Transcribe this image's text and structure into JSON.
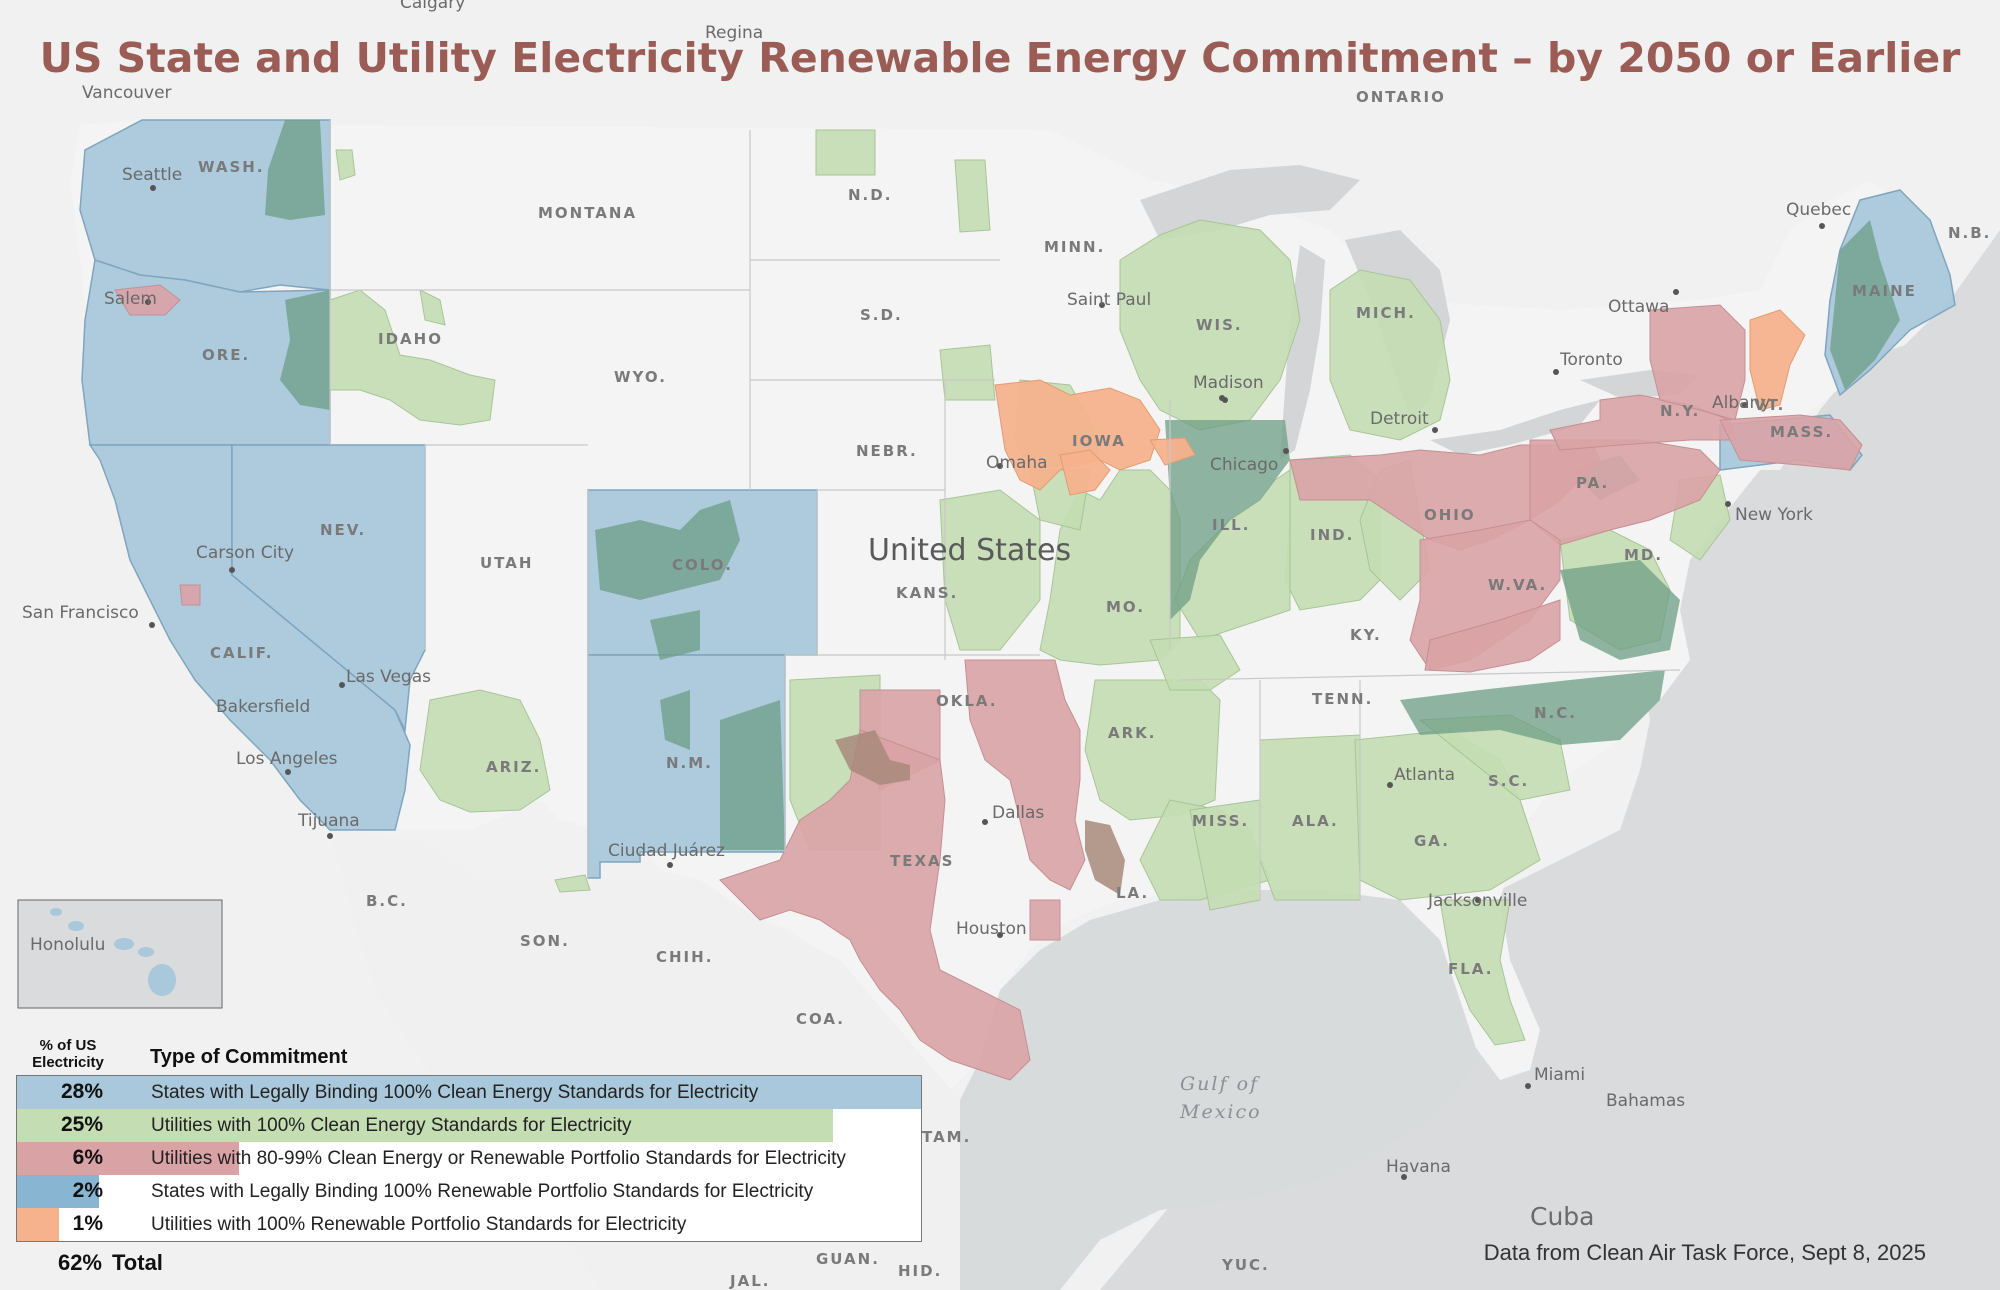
{
  "title": "US State and Utility Electricity Renewable Energy Commitment – by 2050 or Earlier",
  "source": "Data from Clean Air Task Force, Sept 8, 2025",
  "colors": {
    "state_clean": "#a9c8db",
    "utility_clean": "#c4ddb2",
    "utility_80_99": "#d9a3a6",
    "state_rps": "#88b5d2",
    "utility_rps": "#f5b28d",
    "overlap_dark": "#6d9e86",
    "water": "#d8dbdc",
    "land": "#f2f2f2",
    "title": "#9a5c55"
  },
  "legend": {
    "pct_header": "% of US Electricity",
    "type_header": "Type of Commitment",
    "rows": [
      {
        "pct": "28%",
        "label": "States with Legally Binding 100% Clean Energy Standards for Electricity",
        "value": 28,
        "color": "#a9c8db"
      },
      {
        "pct": "25%",
        "label": "Utilities with 100% Clean Energy Standards for Electricity",
        "value": 25,
        "color": "#c4ddb2"
      },
      {
        "pct": "6%",
        "label": "Utilities with 80-99% Clean Energy or Renewable Portfolio Standards for Electricity",
        "value": 6,
        "color": "#d9a3a6"
      },
      {
        "pct": "2%",
        "label": "States with Legally Binding 100% Renewable Portfolio Standards for Electricity",
        "value": 2,
        "color": "#88b5d2"
      },
      {
        "pct": "1%",
        "label": "Utilities with 100% Renewable Portfolio Standards for Electricity",
        "value": 1,
        "color": "#f5b28d"
      }
    ],
    "total_pct": "62%",
    "total_label": "Total"
  },
  "map_labels": {
    "country": "United States",
    "cities": {
      "calgary": "Calgary",
      "regina": "Regina",
      "vancouver": "Vancouver",
      "seattle": "Seattle",
      "salem": "Salem",
      "quebec": "Quebec",
      "ottawa": "Ottawa",
      "toronto": "Toronto",
      "albany": "Albany",
      "saint_paul": "Saint Paul",
      "madison": "Madison",
      "detroit": "Detroit",
      "chicago": "Chicago",
      "omaha": "Omaha",
      "new_york": "New York",
      "carson_city": "Carson City",
      "san_francisco": "San Francisco",
      "las_vegas": "Las Vegas",
      "bakersfield": "Bakersfield",
      "los_angeles": "Los Angeles",
      "tijuana": "Tijuana",
      "ciudad_juarez": "Ciudad Juárez",
      "dallas": "Dallas",
      "houston": "Houston",
      "atlanta": "Atlanta",
      "jacksonville": "Jacksonville",
      "miami": "Miami",
      "havana": "Havana",
      "honolulu": "Honolulu",
      "bahamas": "Bahamas",
      "cuba": "Cuba"
    },
    "states": {
      "wash": "WASH.",
      "ore": "ORE.",
      "calif": "CALIF.",
      "nev": "NEV.",
      "idaho": "IDAHO",
      "montana": "MONTANA",
      "wyo": "WYO.",
      "utah": "UTAH",
      "colo": "COLO.",
      "ariz": "ARIZ.",
      "nm": "N.M.",
      "nd": "N.D.",
      "sd": "S.D.",
      "nebr": "NEBR.",
      "kans": "KANS.",
      "okla": "OKLA.",
      "texas": "TEXAS",
      "minn": "MINN.",
      "iowa": "IOWA",
      "mo": "MO.",
      "ark": "ARK.",
      "la": "LA.",
      "wis": "WIS.",
      "mich": "MICH.",
      "ill": "ILL.",
      "ind": "IND.",
      "ohio": "OHIO",
      "ky": "KY.",
      "tenn": "TENN.",
      "miss": "MISS.",
      "ala": "ALA.",
      "ga": "GA.",
      "fla": "FLA.",
      "sc": "S.C.",
      "nc": "N.C.",
      "wva": "W.VA.",
      "pa": "PA.",
      "ny": "N.Y.",
      "vt": "VT.",
      "mass": "MASS.",
      "maine": "MAINE",
      "md": "MD.",
      "ontario": "ONTARIO",
      "nb": "N.B.",
      "bc": "B.C.",
      "son": "SON.",
      "chih": "CHIH.",
      "coa": "COA.",
      "guan": "GUAN.",
      "hid": "HID.",
      "yuc": "YUC.",
      "jal": "JAL.",
      "tam": "TAM."
    },
    "water": {
      "gulf_line1": "Gulf of",
      "gulf_line2": "Mexico"
    }
  }
}
